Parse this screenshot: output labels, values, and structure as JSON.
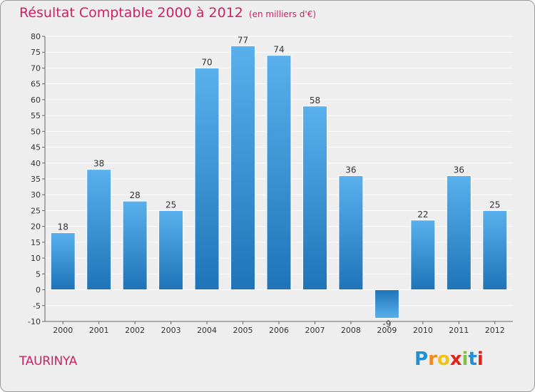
{
  "chart_data": {
    "type": "bar",
    "title": "Résultat Comptable 2000 à 2012",
    "unit_label": "(en milliers d'€)",
    "categories": [
      "2000",
      "2001",
      "2002",
      "2003",
      "2004",
      "2005",
      "2006",
      "2007",
      "2008",
      "2009",
      "2010",
      "2011",
      "2012"
    ],
    "values": [
      18,
      38,
      28,
      25,
      70,
      77,
      74,
      58,
      36,
      -9,
      22,
      36,
      25
    ],
    "data_labels": [
      "18",
      "38",
      "28",
      "25",
      "70",
      "77",
      "74",
      "58",
      "36",
      "-9",
      "22",
      "36",
      "25"
    ],
    "ylim": [
      -10,
      80
    ],
    "yticks": [
      -10,
      -5,
      0,
      5,
      10,
      15,
      20,
      25,
      30,
      35,
      40,
      45,
      50,
      55,
      60,
      65,
      70,
      75,
      80
    ],
    "ytick_labels": [
      "-10",
      "-5",
      "0",
      "5",
      "10",
      "15",
      "20",
      "25",
      "30",
      "35",
      "40",
      "45",
      "50",
      "55",
      "60",
      "65",
      "70",
      "75",
      "80"
    ],
    "grid": true,
    "xlabel": "",
    "ylabel": ""
  },
  "location": "TAURINYA",
  "brand": {
    "letters": [
      "P",
      "r",
      "o",
      "x",
      "i",
      "t",
      "i"
    ],
    "colors": [
      "#1f8fd8",
      "#f08a1c",
      "#f2c21a",
      "#e2231a",
      "#7cc142",
      "#1f8fd8",
      "#e2231a"
    ]
  },
  "colors": {
    "bar_light": "#5ab0ec",
    "bar_dark": "#1f74b8",
    "grid": "#ffffff",
    "axis": "#666666",
    "title": "#cc2266"
  }
}
